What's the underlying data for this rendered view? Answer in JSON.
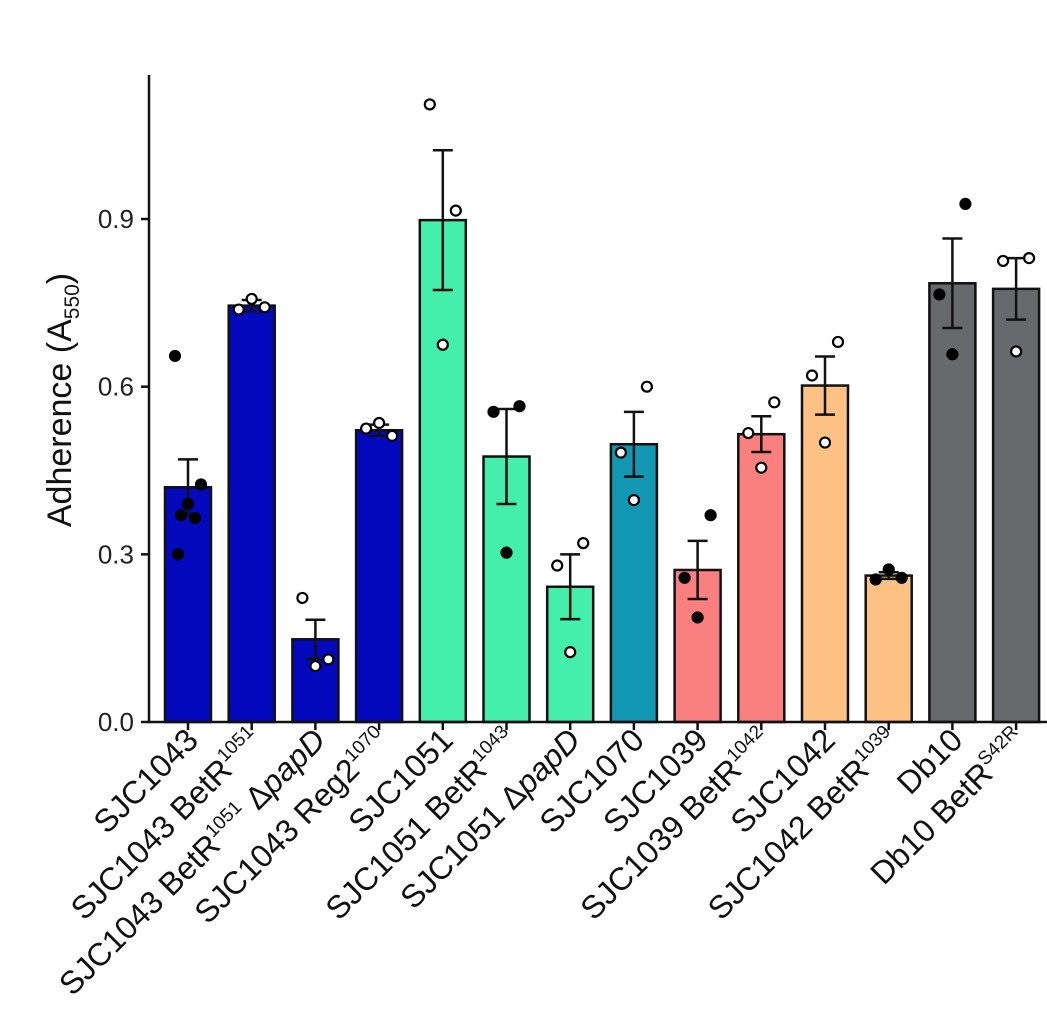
{
  "chart_data": {
    "type": "bar",
    "ylabel": {
      "main": "Adherence (A",
      "sub": "550",
      "end": ")"
    },
    "ylim": [
      0,
      1.15
    ],
    "yticks": [
      0.0,
      0.3,
      0.6,
      0.9
    ],
    "ytick_labels": [
      "0.0",
      "0.3",
      "0.6",
      "0.9"
    ],
    "grid": false,
    "categories": [
      {
        "parts": [
          {
            "t": "SJC1043"
          }
        ]
      },
      {
        "parts": [
          {
            "t": "SJC1043 BetR"
          },
          {
            "t": "1051",
            "sup": true
          }
        ]
      },
      {
        "parts": [
          {
            "t": "SJC1043 BetR"
          },
          {
            "t": "1051",
            "sup": true
          },
          {
            "t": " Δ"
          },
          {
            "t": "papD",
            "italic": true
          }
        ]
      },
      {
        "parts": [
          {
            "t": "SJC1043 Reg2"
          },
          {
            "t": "1070",
            "sup": true
          }
        ]
      },
      {
        "parts": [
          {
            "t": "SJC1051"
          }
        ]
      },
      {
        "parts": [
          {
            "t": "SJC1051 BetR"
          },
          {
            "t": "1043",
            "sup": true
          }
        ]
      },
      {
        "parts": [
          {
            "t": "SJC1051 Δ"
          },
          {
            "t": "papD",
            "italic": true
          }
        ]
      },
      {
        "parts": [
          {
            "t": "SJC1070"
          }
        ]
      },
      {
        "parts": [
          {
            "t": "SJC1039"
          }
        ]
      },
      {
        "parts": [
          {
            "t": "SJC1039 BetR"
          },
          {
            "t": "1042",
            "sup": true
          }
        ]
      },
      {
        "parts": [
          {
            "t": "SJC1042"
          }
        ]
      },
      {
        "parts": [
          {
            "t": "SJC1042 BetR"
          },
          {
            "t": "1039",
            "sup": true
          }
        ]
      },
      {
        "parts": [
          {
            "t": "Db10"
          }
        ]
      },
      {
        "parts": [
          {
            "t": "Db10 BetR"
          },
          {
            "t": "S42R",
            "sup": true
          }
        ]
      }
    ],
    "values": [
      0.42,
      0.745,
      0.148,
      0.522,
      0.898,
      0.475,
      0.242,
      0.497,
      0.272,
      0.515,
      0.602,
      0.262,
      0.785,
      0.775
    ],
    "errors": [
      0.05,
      0.01,
      0.035,
      0.01,
      0.125,
      0.085,
      0.058,
      0.058,
      0.052,
      0.032,
      0.052,
      0.006,
      0.08,
      0.055
    ],
    "colors": [
      "#0509bd",
      "#0509bd",
      "#0509bd",
      "#0509bd",
      "#44eeab",
      "#44eeab",
      "#44eeab",
      "#1398b4",
      "#fa7f7f",
      "#fa7f7f",
      "#fdc283",
      "#fdc283",
      "#68696c",
      "#68696c"
    ],
    "points": [
      {
        "filled": true,
        "values": [
          0.655,
          0.425,
          0.39,
          0.37,
          0.365,
          0.3
        ]
      },
      {
        "filled": false,
        "values": [
          0.738,
          0.742,
          0.757
        ]
      },
      {
        "filled": false,
        "values": [
          0.222,
          0.112,
          0.1
        ]
      },
      {
        "filled": false,
        "values": [
          0.525,
          0.512,
          0.535
        ]
      },
      {
        "filled": false,
        "values": [
          1.105,
          0.915,
          0.675
        ]
      },
      {
        "filled": true,
        "values": [
          0.555,
          0.565,
          0.303
        ]
      },
      {
        "filled": false,
        "values": [
          0.28,
          0.32,
          0.125
        ]
      },
      {
        "filled": false,
        "values": [
          0.482,
          0.6,
          0.397
        ]
      },
      {
        "filled": true,
        "values": [
          0.258,
          0.37,
          0.187
        ]
      },
      {
        "filled": false,
        "values": [
          0.517,
          0.572,
          0.455
        ]
      },
      {
        "filled": false,
        "values": [
          0.62,
          0.68,
          0.5
        ]
      },
      {
        "filled": true,
        "values": [
          0.255,
          0.258,
          0.273
        ]
      },
      {
        "filled": true,
        "values": [
          0.765,
          0.927,
          0.658
        ]
      },
      {
        "filled": false,
        "values": [
          0.825,
          0.83,
          0.663
        ]
      }
    ]
  }
}
